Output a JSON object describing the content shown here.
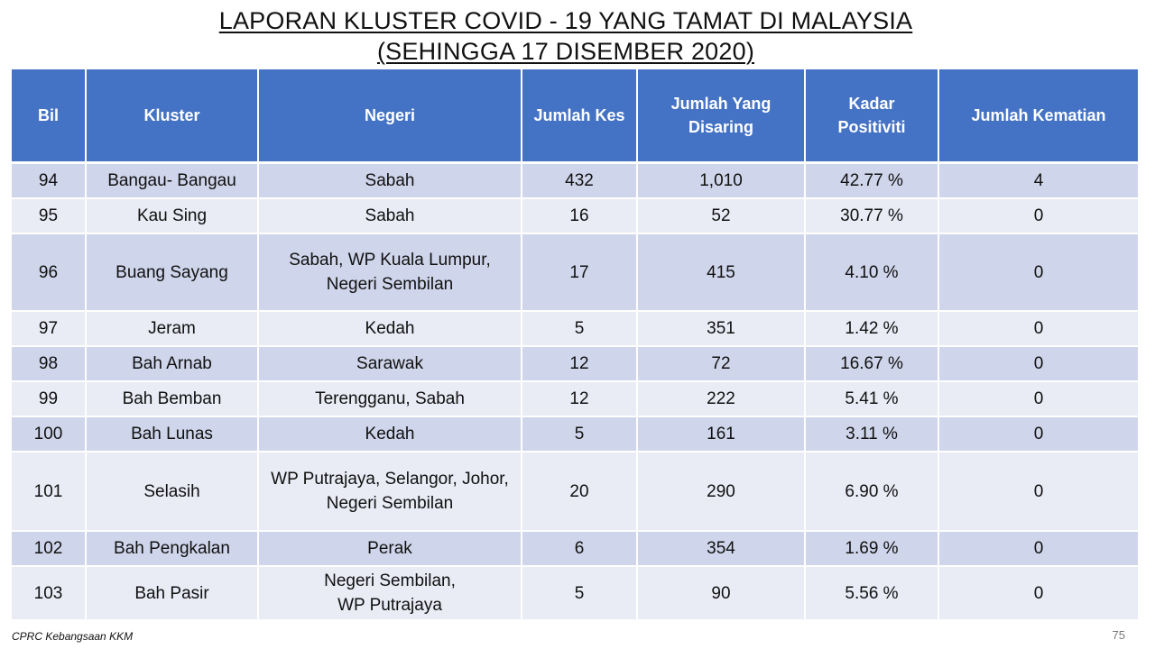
{
  "title": {
    "line1": "LAPORAN KLUSTER COVID - 19 YANG TAMAT DI MALAYSIA",
    "line2": "(SEHINGGA 17 DISEMBER 2020)"
  },
  "table": {
    "headers": [
      "Bil",
      "Kluster",
      "Negeri",
      "Jumlah Kes",
      "Jumlah Yang Disaring",
      "Kadar Positiviti",
      "Jumlah Kematian"
    ],
    "rows": [
      {
        "bil": "94",
        "kluster": "Bangau- Bangau",
        "negeri": "Sabah",
        "kes": "432",
        "disaring": "1,010",
        "positiviti": "42.77 %",
        "kematian": "4"
      },
      {
        "bil": "95",
        "kluster": "Kau Sing",
        "negeri": "Sabah",
        "kes": "16",
        "disaring": "52",
        "positiviti": "30.77 %",
        "kematian": "0"
      },
      {
        "bil": "96",
        "kluster": "Buang Sayang",
        "negeri": "Sabah, WP Kuala Lumpur, Negeri Sembilan",
        "kes": "17",
        "disaring": "415",
        "positiviti": "4.10 %",
        "kematian": "0"
      },
      {
        "bil": "97",
        "kluster": "Jeram",
        "negeri": "Kedah",
        "kes": "5",
        "disaring": "351",
        "positiviti": "1.42 %",
        "kematian": "0"
      },
      {
        "bil": "98",
        "kluster": "Bah Arnab",
        "negeri": "Sarawak",
        "kes": "12",
        "disaring": "72",
        "positiviti": "16.67 %",
        "kematian": "0"
      },
      {
        "bil": "99",
        "kluster": "Bah Bemban",
        "negeri": "Terengganu, Sabah",
        "kes": "12",
        "disaring": "222",
        "positiviti": "5.41 %",
        "kematian": "0"
      },
      {
        "bil": "100",
        "kluster": "Bah Lunas",
        "negeri": "Kedah",
        "kes": "5",
        "disaring": "161",
        "positiviti": "3.11 %",
        "kematian": "0"
      },
      {
        "bil": "101",
        "kluster": "Selasih",
        "negeri": "WP Putrajaya, Selangor, Johor, Negeri Sembilan",
        "kes": "20",
        "disaring": "290",
        "positiviti": "6.90 %",
        "kematian": "0"
      },
      {
        "bil": "102",
        "kluster": "Bah Pengkalan",
        "negeri": "Perak",
        "kes": "6",
        "disaring": "354",
        "positiviti": "1.69 %",
        "kematian": "0"
      },
      {
        "bil": "103",
        "kluster": "Bah Pasir",
        "negeri": "Negeri Sembilan, WP Putrajaya",
        "kes": "5",
        "disaring": "90",
        "positiviti": "5.56 %",
        "kematian": "0"
      }
    ]
  },
  "footer": {
    "source": "CPRC Kebangsaan KKM",
    "page_number": "75"
  }
}
